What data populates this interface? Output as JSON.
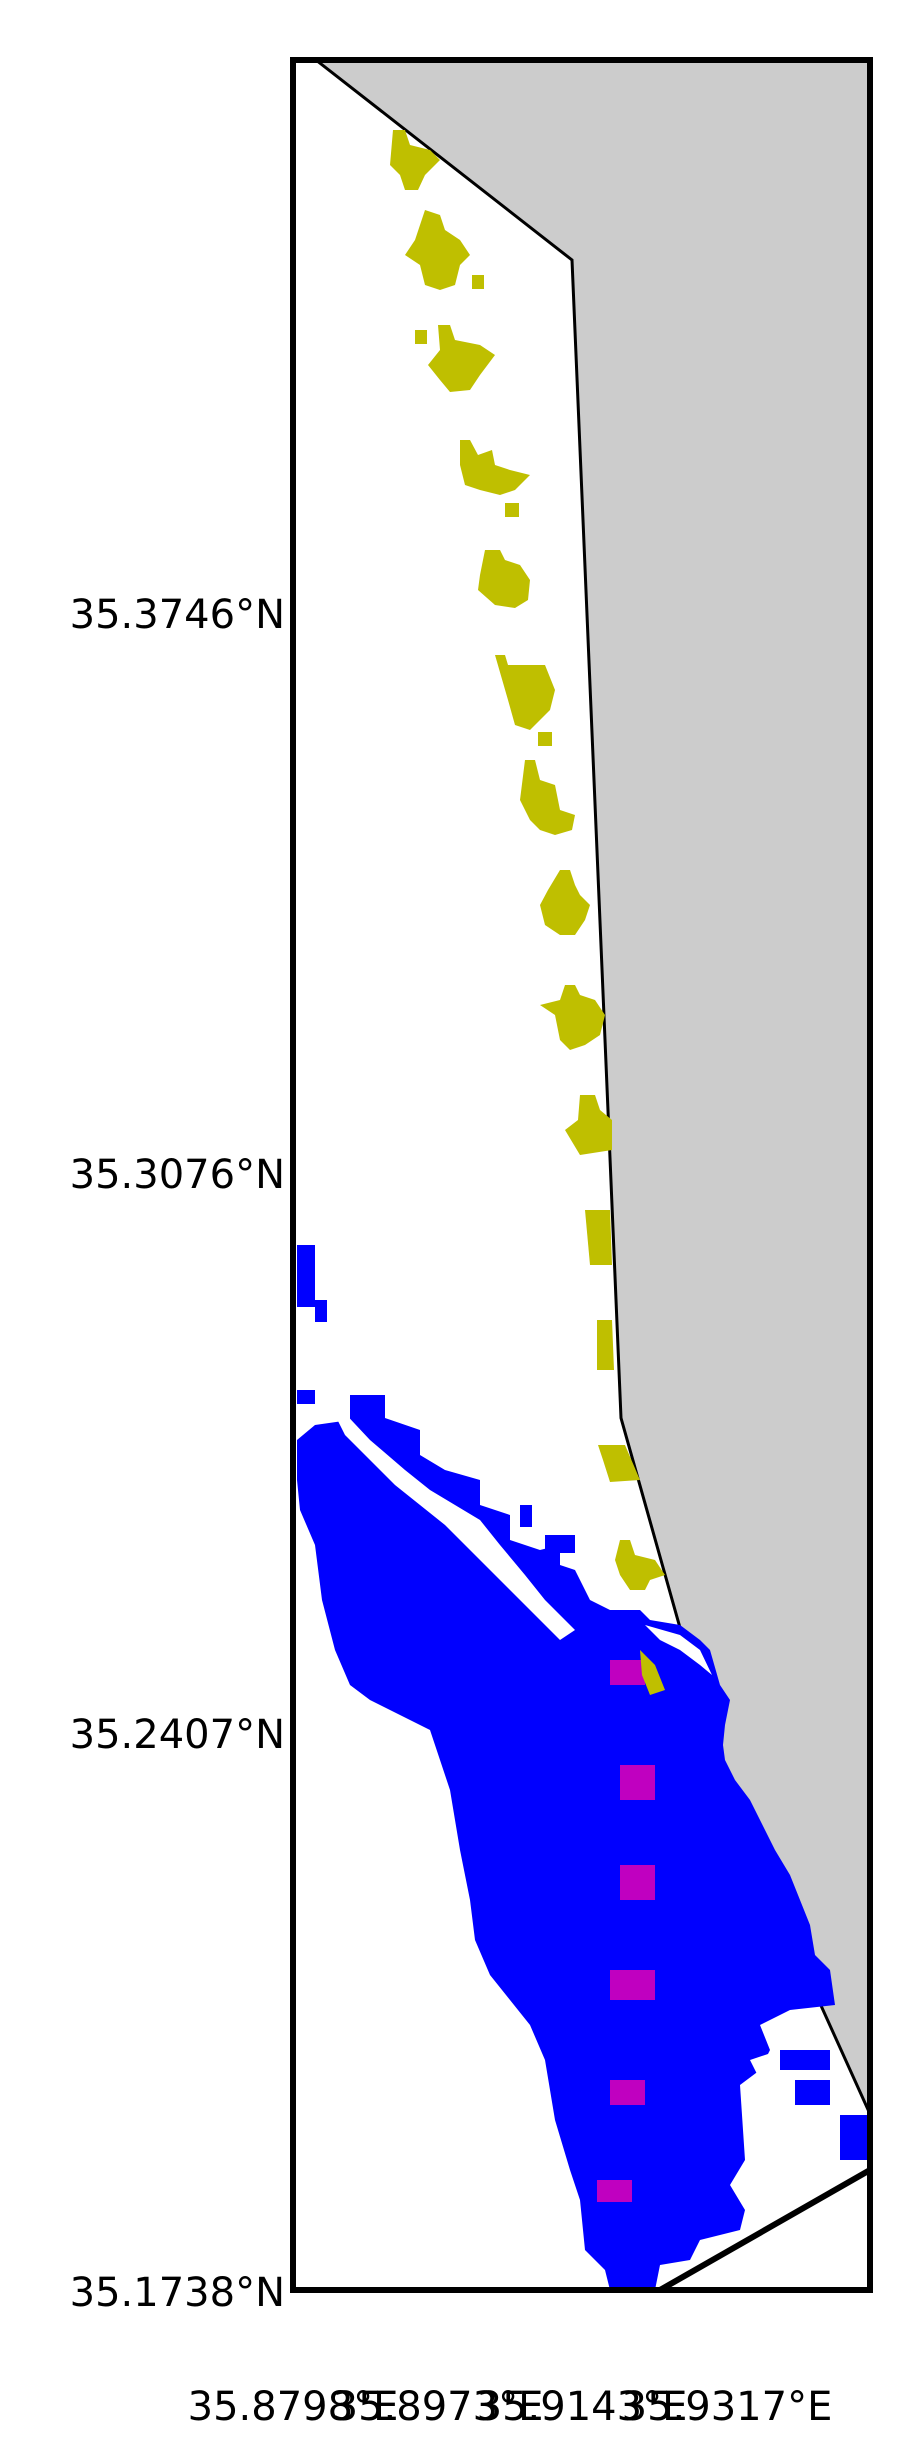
{
  "map": {
    "colors": {
      "background": "#ffffff",
      "land": "#cccccc",
      "frame": "#000000",
      "blue_region": "#0000ff",
      "yellow_region": "#bfbf00",
      "magenta_region": "#c000c0"
    },
    "y_ticks": [
      "35.3746°N",
      "35.3076°N",
      "35.2407°N",
      "35.1738°N"
    ],
    "x_ticks": [
      "35.8798°E",
      "35.8973°E",
      "35.9143°E",
      "35.9317°E"
    ]
  }
}
